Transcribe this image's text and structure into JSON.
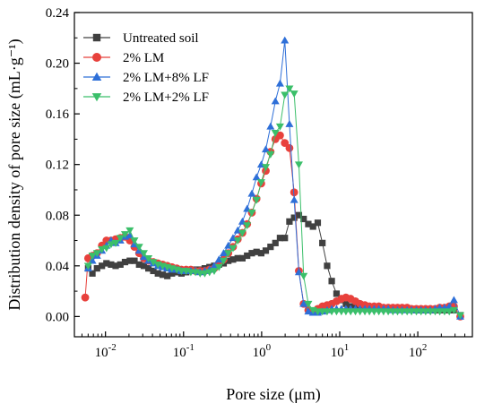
{
  "chart_data": {
    "type": "line",
    "xlabel": "Pore size (μm)",
    "ylabel": "Distribution density of pore size (mL·g⁻¹)",
    "xscale": "log",
    "xlim": [
      0.004,
      500
    ],
    "ylim": [
      -0.016,
      0.24
    ],
    "yticks": [
      0.0,
      0.04,
      0.08,
      0.12,
      0.16,
      0.2,
      0.24
    ],
    "ytick_labels": [
      "0.00",
      "0.04",
      "0.08",
      "0.12",
      "0.16",
      "0.20",
      "0.24"
    ],
    "xticks": [
      0.01,
      0.1,
      1,
      10,
      100
    ],
    "xtick_labels": [
      {
        "base": "10",
        "exp": "-2"
      },
      {
        "base": "10",
        "exp": "-1"
      },
      {
        "base": "10",
        "exp": "0"
      },
      {
        "base": "10",
        "exp": "1"
      },
      {
        "base": "10",
        "exp": "2"
      }
    ],
    "grid": false,
    "legend_position": "top-left",
    "series": [
      {
        "name": "Untreated soil",
        "color": "#404040",
        "marker": "square",
        "x": [
          0.006,
          0.0068,
          0.0078,
          0.009,
          0.0103,
          0.0118,
          0.0135,
          0.0155,
          0.0178,
          0.0205,
          0.0235,
          0.027,
          0.031,
          0.0355,
          0.041,
          0.047,
          0.054,
          0.062,
          0.071,
          0.082,
          0.094,
          0.108,
          0.124,
          0.142,
          0.163,
          0.187,
          0.215,
          0.247,
          0.284,
          0.326,
          0.374,
          0.43,
          0.494,
          0.567,
          0.652,
          0.749,
          0.86,
          0.988,
          1.13,
          1.3,
          1.5,
          1.72,
          1.98,
          2.27,
          2.61,
          3.0,
          3.45,
          3.96,
          4.55,
          5.23,
          6.0,
          6.9,
          7.9,
          9.1,
          10.5,
          12,
          13.8,
          15.9,
          18.2,
          21,
          24,
          27.6,
          31.7,
          36.4,
          41.8,
          48,
          55,
          63,
          73,
          83,
          96,
          110,
          126,
          145,
          167,
          191,
          220,
          253,
          290,
          350
        ],
        "values": [
          0.038,
          0.034,
          0.038,
          0.04,
          0.042,
          0.041,
          0.04,
          0.041,
          0.043,
          0.044,
          0.044,
          0.041,
          0.04,
          0.038,
          0.036,
          0.034,
          0.033,
          0.032,
          0.034,
          0.035,
          0.034,
          0.035,
          0.036,
          0.037,
          0.037,
          0.038,
          0.039,
          0.04,
          0.041,
          0.042,
          0.044,
          0.045,
          0.046,
          0.046,
          0.048,
          0.05,
          0.051,
          0.05,
          0.052,
          0.055,
          0.058,
          0.062,
          0.062,
          0.075,
          0.078,
          0.08,
          0.077,
          0.073,
          0.071,
          0.074,
          0.058,
          0.04,
          0.028,
          0.018,
          0.013,
          0.01,
          0.008,
          0.007,
          0.006,
          0.006,
          0.007,
          0.007,
          0.006,
          0.006,
          0.006,
          0.006,
          0.006,
          0.006,
          0.006,
          0.006,
          0.005,
          0.005,
          0.005,
          0.005,
          0.005,
          0.005,
          0.005,
          0.005,
          0.005,
          0.001
        ]
      },
      {
        "name": "2% LM",
        "color": "#e8413c",
        "marker": "circle",
        "x": [
          0.0055,
          0.006,
          0.0068,
          0.0078,
          0.009,
          0.0103,
          0.0118,
          0.0135,
          0.0155,
          0.0178,
          0.0205,
          0.0235,
          0.027,
          0.031,
          0.0355,
          0.041,
          0.047,
          0.054,
          0.062,
          0.071,
          0.082,
          0.094,
          0.108,
          0.124,
          0.142,
          0.163,
          0.187,
          0.215,
          0.247,
          0.284,
          0.326,
          0.374,
          0.43,
          0.494,
          0.567,
          0.652,
          0.749,
          0.86,
          0.988,
          1.13,
          1.3,
          1.5,
          1.72,
          1.98,
          2.27,
          2.61,
          3.0,
          3.45,
          3.96,
          4.55,
          5.23,
          6.0,
          6.9,
          7.9,
          9.1,
          10.5,
          12,
          13.8,
          15.9,
          18.2,
          21,
          24,
          27.6,
          31.7,
          36.4,
          41.8,
          48,
          55,
          63,
          73,
          83,
          96,
          110,
          126,
          145,
          167,
          191,
          220,
          253,
          290,
          350
        ],
        "values": [
          0.015,
          0.046,
          0.048,
          0.05,
          0.056,
          0.06,
          0.06,
          0.061,
          0.062,
          0.063,
          0.06,
          0.055,
          0.05,
          0.046,
          0.044,
          0.043,
          0.042,
          0.041,
          0.04,
          0.039,
          0.038,
          0.037,
          0.037,
          0.037,
          0.036,
          0.036,
          0.036,
          0.037,
          0.038,
          0.042,
          0.045,
          0.05,
          0.055,
          0.061,
          0.066,
          0.073,
          0.082,
          0.093,
          0.105,
          0.115,
          0.13,
          0.14,
          0.143,
          0.137,
          0.133,
          0.098,
          0.036,
          0.01,
          0.005,
          0.004,
          0.006,
          0.008,
          0.009,
          0.01,
          0.012,
          0.014,
          0.015,
          0.014,
          0.012,
          0.01,
          0.009,
          0.008,
          0.008,
          0.008,
          0.007,
          0.007,
          0.007,
          0.007,
          0.007,
          0.007,
          0.006,
          0.006,
          0.006,
          0.006,
          0.006,
          0.006,
          0.007,
          0.007,
          0.008,
          0.008,
          0.0
        ]
      },
      {
        "name": "2% LM+8% LF",
        "color": "#2e6fd8",
        "marker": "triangle-up",
        "x": [
          0.006,
          0.0068,
          0.0078,
          0.009,
          0.0103,
          0.0118,
          0.0135,
          0.0155,
          0.0178,
          0.0205,
          0.0235,
          0.027,
          0.031,
          0.0355,
          0.041,
          0.047,
          0.054,
          0.062,
          0.071,
          0.082,
          0.094,
          0.108,
          0.124,
          0.142,
          0.163,
          0.187,
          0.215,
          0.247,
          0.284,
          0.326,
          0.374,
          0.43,
          0.494,
          0.567,
          0.652,
          0.749,
          0.86,
          0.988,
          1.13,
          1.3,
          1.5,
          1.72,
          1.98,
          2.27,
          2.61,
          3.0,
          3.45,
          3.96,
          4.55,
          5.23,
          6.0,
          6.9,
          7.9,
          9.1,
          10.5,
          12,
          13.8,
          15.9,
          18.2,
          21,
          24,
          27.6,
          31.7,
          36.4,
          41.8,
          48,
          55,
          63,
          73,
          83,
          96,
          110,
          126,
          145,
          167,
          191,
          220,
          253,
          290,
          350
        ],
        "values": [
          0.038,
          0.044,
          0.048,
          0.052,
          0.056,
          0.06,
          0.058,
          0.06,
          0.063,
          0.064,
          0.057,
          0.052,
          0.047,
          0.044,
          0.042,
          0.04,
          0.039,
          0.038,
          0.037,
          0.037,
          0.036,
          0.036,
          0.036,
          0.036,
          0.035,
          0.036,
          0.037,
          0.04,
          0.045,
          0.05,
          0.056,
          0.062,
          0.068,
          0.075,
          0.085,
          0.097,
          0.11,
          0.12,
          0.132,
          0.15,
          0.17,
          0.184,
          0.218,
          0.152,
          0.092,
          0.035,
          0.01,
          0.004,
          0.003,
          0.003,
          0.004,
          0.005,
          0.006,
          0.006,
          0.006,
          0.006,
          0.006,
          0.006,
          0.006,
          0.006,
          0.006,
          0.006,
          0.006,
          0.006,
          0.006,
          0.005,
          0.005,
          0.005,
          0.005,
          0.005,
          0.005,
          0.005,
          0.005,
          0.005,
          0.006,
          0.007,
          0.007,
          0.008,
          0.013,
          0.0
        ]
      },
      {
        "name": "2% LM+2% LF",
        "color": "#3bbf6a",
        "marker": "triangle-down",
        "x": [
          0.006,
          0.0068,
          0.0078,
          0.009,
          0.0103,
          0.0118,
          0.0135,
          0.0155,
          0.0178,
          0.0205,
          0.0235,
          0.027,
          0.031,
          0.0355,
          0.041,
          0.047,
          0.054,
          0.062,
          0.071,
          0.082,
          0.094,
          0.108,
          0.124,
          0.142,
          0.163,
          0.187,
          0.215,
          0.247,
          0.284,
          0.326,
          0.374,
          0.43,
          0.494,
          0.567,
          0.652,
          0.749,
          0.86,
          0.988,
          1.13,
          1.3,
          1.5,
          1.72,
          1.98,
          2.27,
          2.61,
          3.0,
          3.45,
          3.96,
          4.55,
          5.23,
          6.0,
          6.9,
          7.9,
          9.1,
          10.5,
          12,
          13.8,
          15.9,
          18.2,
          21,
          24,
          27.6,
          31.7,
          36.4,
          41.8,
          48,
          55,
          63,
          73,
          83,
          96,
          110,
          126,
          145,
          167,
          191,
          220,
          253,
          290,
          350
        ],
        "values": [
          0.04,
          0.048,
          0.05,
          0.053,
          0.054,
          0.057,
          0.058,
          0.062,
          0.065,
          0.068,
          0.06,
          0.055,
          0.05,
          0.046,
          0.043,
          0.041,
          0.04,
          0.039,
          0.038,
          0.037,
          0.036,
          0.036,
          0.035,
          0.035,
          0.034,
          0.034,
          0.035,
          0.036,
          0.039,
          0.044,
          0.05,
          0.054,
          0.06,
          0.066,
          0.072,
          0.082,
          0.092,
          0.106,
          0.118,
          0.128,
          0.145,
          0.15,
          0.175,
          0.18,
          0.176,
          0.12,
          0.032,
          0.01,
          0.005,
          0.004,
          0.004,
          0.004,
          0.004,
          0.004,
          0.004,
          0.004,
          0.004,
          0.004,
          0.004,
          0.004,
          0.004,
          0.004,
          0.004,
          0.004,
          0.004,
          0.004,
          0.004,
          0.004,
          0.004,
          0.004,
          0.004,
          0.004,
          0.004,
          0.004,
          0.004,
          0.004,
          0.004,
          0.004,
          0.005,
          0.001
        ]
      }
    ]
  }
}
